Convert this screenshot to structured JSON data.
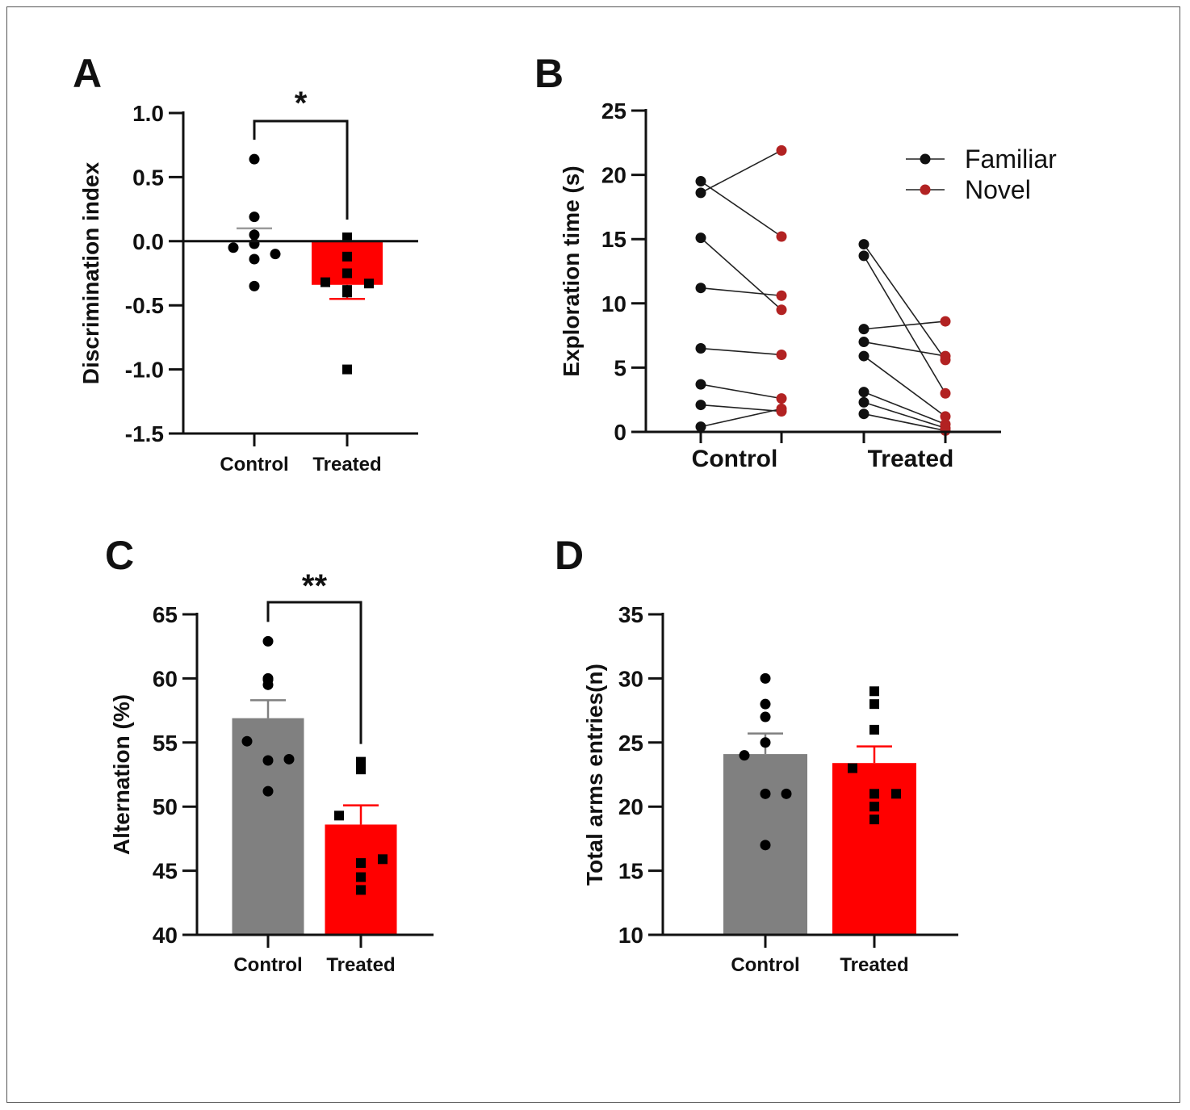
{
  "colors": {
    "control_bar": "#808080",
    "treated_bar": "#ff0000",
    "familiar": "#111111",
    "novel": "#b22222",
    "axis": "#111111"
  },
  "chart_data": [
    {
      "id": "A",
      "panel_letter": "A",
      "type": "bar",
      "ylabel": "Discrimination index",
      "ylim": [
        -1.5,
        1.0
      ],
      "yticks": [
        1.0,
        0.5,
        0.0,
        -0.5,
        -1.0,
        -1.5
      ],
      "ytick_labels": [
        "1.0",
        "0.5",
        "0.0",
        "-0.5",
        "-1.0",
        "-1.5"
      ],
      "categories": [
        "Control",
        "Treated"
      ],
      "means": [
        0.0,
        -0.34
      ],
      "sem": [
        0.1,
        0.11
      ],
      "bar_colors": [
        "#808080",
        "#ff0000"
      ],
      "points": [
        [
          0.64,
          0.19,
          0.05,
          -0.02,
          -0.05,
          -0.1,
          -0.14,
          -0.35
        ],
        [
          0.03,
          -0.12,
          -0.25,
          -0.32,
          -0.33,
          -0.38,
          -0.4,
          -1.0
        ]
      ],
      "markers": [
        "circle",
        "square"
      ],
      "significance": "*"
    },
    {
      "id": "B",
      "panel_letter": "B",
      "type": "line",
      "ylabel": "Exploration time (s)",
      "ylim": [
        0,
        25
      ],
      "yticks": [
        25,
        20,
        15,
        10,
        5,
        0
      ],
      "ytick_labels": [
        "25",
        "20",
        "15",
        "10",
        "5",
        "0"
      ],
      "categories": [
        "Control",
        "Treated"
      ],
      "legend": [
        {
          "name": "Familiar",
          "color": "#111111"
        },
        {
          "name": "Novel",
          "color": "#b22222"
        }
      ],
      "legend_position": "top-right",
      "pairs": [
        {
          "group": "Control",
          "familiar": [
            19.5,
            18.6,
            15.1,
            11.2,
            6.5,
            3.7,
            2.1,
            0.4
          ],
          "novel": [
            15.2,
            21.9,
            9.5,
            10.6,
            6.0,
            2.6,
            1.6,
            1.8
          ]
        },
        {
          "group": "Treated",
          "familiar": [
            14.6,
            13.7,
            8.0,
            7.0,
            5.9,
            3.1,
            2.3,
            1.4
          ],
          "novel": [
            5.6,
            3.0,
            8.6,
            5.9,
            1.2,
            0.6,
            0.3,
            0.1
          ]
        }
      ]
    },
    {
      "id": "C",
      "panel_letter": "C",
      "type": "bar",
      "ylabel": "Alternation (%)",
      "ylim": [
        40,
        65
      ],
      "yticks": [
        65,
        60,
        55,
        50,
        45,
        40
      ],
      "ytick_labels": [
        "65",
        "60",
        "55",
        "50",
        "45",
        "40"
      ],
      "categories": [
        "Control",
        "Treated"
      ],
      "means": [
        56.9,
        48.6
      ],
      "sem": [
        1.4,
        1.5
      ],
      "bar_colors": [
        "#808080",
        "#ff0000"
      ],
      "points": [
        [
          62.9,
          60.0,
          59.9,
          59.5,
          55.1,
          53.7,
          53.6,
          51.2
        ],
        [
          53.2,
          52.9,
          53.5,
          49.3,
          45.9,
          45.6,
          44.5,
          43.5
        ]
      ],
      "markers": [
        "circle",
        "square"
      ],
      "significance": "**"
    },
    {
      "id": "D",
      "panel_letter": "D",
      "type": "bar",
      "ylabel": "Total arms entries(n)",
      "ylim": [
        10,
        35
      ],
      "yticks": [
        35,
        30,
        25,
        20,
        15,
        10
      ],
      "ytick_labels": [
        "35",
        "30",
        "25",
        "20",
        "15",
        "10"
      ],
      "categories": [
        "Control",
        "Treated"
      ],
      "means": [
        24.1,
        23.4
      ],
      "sem": [
        1.6,
        1.3
      ],
      "bar_colors": [
        "#808080",
        "#ff0000"
      ],
      "points": [
        [
          30.0,
          28.0,
          27.0,
          25.0,
          24.0,
          21.0,
          21.0,
          17.0
        ],
        [
          29.0,
          28.0,
          26.0,
          23.0,
          21.0,
          21.0,
          20.0,
          19.0
        ]
      ],
      "markers": [
        "circle",
        "square"
      ],
      "significance": ""
    }
  ]
}
